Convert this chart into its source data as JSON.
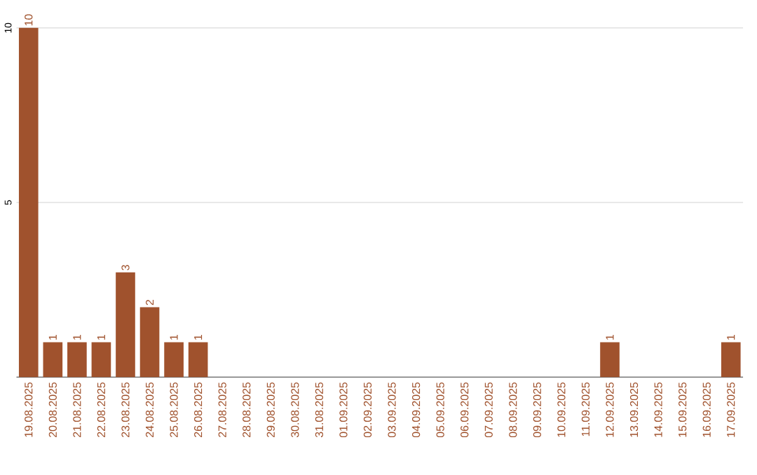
{
  "chart_data": {
    "type": "bar",
    "color": "#a0522d",
    "categories": [
      "19.08.2025",
      "20.08.2025",
      "21.08.2025",
      "22.08.2025",
      "23.08.2025",
      "24.08.2025",
      "25.08.2025",
      "26.08.2025",
      "27.08.2025",
      "28.08.2025",
      "29.08.2025",
      "30.08.2025",
      "31.08.2025",
      "01.09.2025",
      "02.09.2025",
      "03.09.2025",
      "04.09.2025",
      "05.09.2025",
      "06.09.2025",
      "07.09.2025",
      "08.09.2025",
      "09.09.2025",
      "10.09.2025",
      "11.09.2025",
      "12.09.2025",
      "13.09.2025",
      "14.09.2025",
      "15.09.2025",
      "16.09.2025",
      "17.09.2025"
    ],
    "values": [
      10,
      1,
      1,
      1,
      3,
      2,
      1,
      1,
      0,
      0,
      0,
      0,
      0,
      0,
      0,
      0,
      0,
      0,
      0,
      0,
      0,
      0,
      0,
      0,
      1,
      0,
      0,
      0,
      0,
      1
    ],
    "value_labels": [
      "10",
      "1",
      "1",
      "1",
      "3",
      "2",
      "1",
      "1",
      null,
      null,
      null,
      null,
      null,
      null,
      null,
      null,
      null,
      null,
      null,
      null,
      null,
      null,
      null,
      null,
      "1",
      null,
      null,
      null,
      null,
      "1"
    ],
    "ylim": [
      0,
      10
    ],
    "yticks": [
      5,
      10
    ],
    "grid": "y"
  }
}
